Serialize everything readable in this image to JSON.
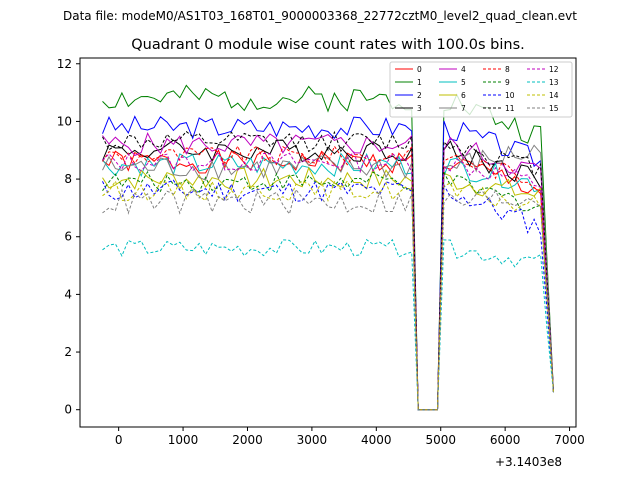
{
  "header": {
    "suptitle": "Data file: modeM0/AS1T03_168T01_9000003368_22772cztM0_level2_quad_clean.evt"
  },
  "chart_data": {
    "type": "line",
    "title": "Quadrant 0 module wise count rates with 100.0s bins.",
    "xlabel": "",
    "ylabel": "",
    "x_offset_label": "+3.1403e8",
    "xlim": [
      -600,
      7100
    ],
    "ylim": [
      -0.6,
      12.2
    ],
    "xticks": [
      0,
      1000,
      2000,
      3000,
      4000,
      5000,
      6000,
      7000
    ],
    "xtick_labels": [
      "0",
      "1000",
      "2000",
      "3000",
      "4000",
      "5000",
      "6000",
      "7000"
    ],
    "yticks": [
      0,
      2,
      4,
      6,
      8,
      10,
      12
    ],
    "ytick_labels": [
      "0",
      "2",
      "4",
      "6",
      "8",
      "10",
      "12"
    ],
    "legend_position": "top-right",
    "legend_columns": 4,
    "gap": [
      4600,
      5000
    ],
    "x_range": [
      -250,
      6750
    ],
    "bin": 100,
    "series": [
      {
        "name": "0",
        "color": "#ff0000",
        "style": "solid",
        "mean": 8.6,
        "noise": 0.4,
        "end": 7.6,
        "seed": 1
      },
      {
        "name": "1",
        "color": "#008000",
        "style": "solid",
        "mean": 10.8,
        "noise": 0.45,
        "end": 9.4,
        "seed": 2
      },
      {
        "name": "2",
        "color": "#0000ff",
        "style": "solid",
        "mean": 9.8,
        "noise": 0.4,
        "end": 8.6,
        "seed": 3
      },
      {
        "name": "3",
        "color": "#000000",
        "style": "solid",
        "mean": 9.0,
        "noise": 0.4,
        "end": 8.0,
        "seed": 4
      },
      {
        "name": "4",
        "color": "#bf00bf",
        "style": "solid",
        "mean": 9.2,
        "noise": 0.4,
        "end": 8.2,
        "seed": 5
      },
      {
        "name": "5",
        "color": "#00bfbf",
        "style": "solid",
        "mean": 8.5,
        "noise": 0.4,
        "end": 7.8,
        "seed": 6
      },
      {
        "name": "6",
        "color": "#bfbf00",
        "style": "solid",
        "mean": 8.0,
        "noise": 0.4,
        "end": 7.4,
        "seed": 7
      },
      {
        "name": "7",
        "color": "#808080",
        "style": "solid",
        "mean": 8.4,
        "noise": 0.45,
        "end": 9.0,
        "seed": 8
      },
      {
        "name": "8",
        "color": "#ff0000",
        "style": "dashed",
        "mean": 8.8,
        "noise": 0.35,
        "end": 7.9,
        "seed": 9
      },
      {
        "name": "9",
        "color": "#008000",
        "style": "dashed",
        "mean": 7.9,
        "noise": 0.35,
        "end": 7.0,
        "seed": 10
      },
      {
        "name": "10",
        "color": "#0000ff",
        "style": "dashed",
        "mean": 7.6,
        "noise": 0.4,
        "end": 6.3,
        "seed": 11
      },
      {
        "name": "11",
        "color": "#000000",
        "style": "dashed",
        "mean": 9.3,
        "noise": 0.35,
        "end": 8.3,
        "seed": 12
      },
      {
        "name": "12",
        "color": "#bf00bf",
        "style": "dashed",
        "mean": 8.6,
        "noise": 0.35,
        "end": 7.8,
        "seed": 13
      },
      {
        "name": "13",
        "color": "#00bfbf",
        "style": "dashed",
        "mean": 5.6,
        "noise": 0.3,
        "end": 5.1,
        "seed": 14
      },
      {
        "name": "14",
        "color": "#bfbf00",
        "style": "dashed",
        "mean": 7.6,
        "noise": 0.35,
        "end": 7.0,
        "seed": 15
      },
      {
        "name": "15",
        "color": "#808080",
        "style": "dashed",
        "mean": 7.2,
        "noise": 0.45,
        "end": 7.4,
        "seed": 16
      }
    ]
  }
}
